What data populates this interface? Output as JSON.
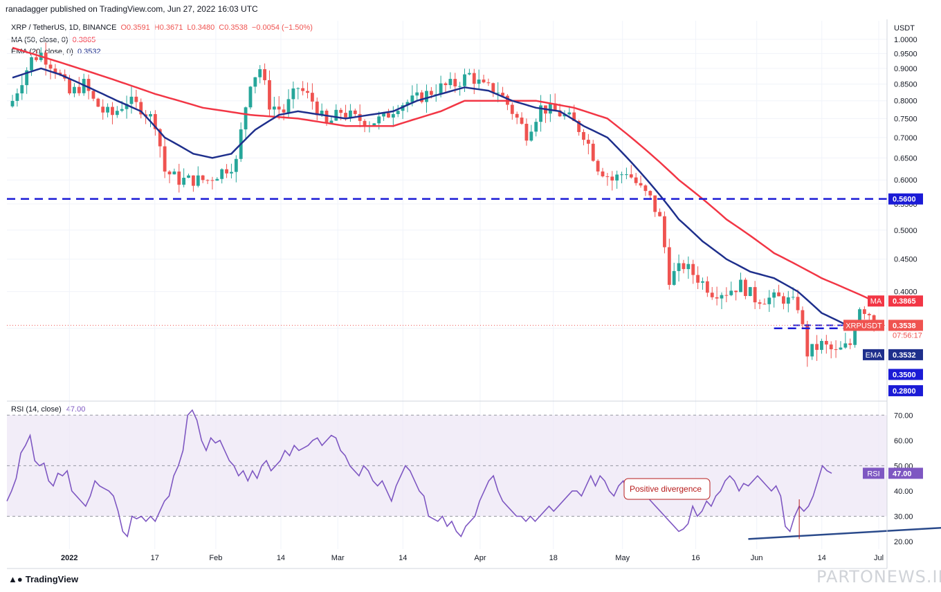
{
  "publisher": "ranadagger published on TradingView.com, Jun 27, 2022 16:03 UTC",
  "legend": {
    "symbol": "XRP / TetherUS, 1D, BINANCE",
    "open": "O0.3591",
    "high": "H0.3671",
    "low": "L0.3480",
    "close": "C0.3538",
    "change": "−0.0054 (−1.50%)",
    "ma_label": "MA (50, close, 0)",
    "ma_value": "0.3865",
    "ema_label": "EMA (20, close, 0)",
    "ema_value": "0.3532"
  },
  "rsi_legend": {
    "label": "RSI (14, close)",
    "value": "47.00"
  },
  "footer": "TradingView",
  "watermark": "PARTONEWS.IR",
  "annotation_text": "Positive divergence",
  "colors": {
    "up": "#26a69a",
    "down": "#ef5350",
    "ma": "#f23645",
    "ema": "#1e2f8c",
    "rsi": "#7e57c2",
    "level": "#1b1bd6",
    "trend": "#2a4a8b"
  },
  "chart_data": [
    {
      "type": "candlestick",
      "title": "XRP / TetherUS, 1D, BINANCE",
      "ylabel": "USDT",
      "yscale": "log",
      "ylim": [
        0.27,
        1.07
      ],
      "y_ticks": [
        1.0,
        0.95,
        0.9,
        0.85,
        0.8,
        0.75,
        0.7,
        0.65,
        0.6,
        0.55,
        0.5,
        0.45,
        0.4,
        0.35
      ],
      "x_ticks": [
        "2022",
        "17",
        "Feb",
        "14",
        "Mar",
        "14",
        "Apr",
        "18",
        "May",
        "16",
        "Jun",
        "14",
        "Jul"
      ],
      "horizontal_levels": [
        0.56,
        0.28
      ],
      "level_tags": [
        "0.5600",
        "0.3500",
        "0.2800"
      ],
      "close_price": 0.3538,
      "countdown": "07:56:17",
      "ticker_tag": "XRPUSDT",
      "ma_tag": "MA",
      "ema_tag": "EMA",
      "ma_tag_value": "0.3865",
      "ema_tag_value": "0.3532",
      "close_tag_value": "0.3538",
      "series_names": [
        "MA",
        "EMA"
      ],
      "close_anchors": [
        [
          0,
          0.8
        ],
        [
          4,
          0.93
        ],
        [
          6,
          0.95
        ],
        [
          9,
          0.9
        ],
        [
          12,
          0.82
        ],
        [
          15,
          0.85
        ],
        [
          17,
          0.8
        ],
        [
          19,
          0.77
        ],
        [
          21,
          0.76
        ],
        [
          24,
          0.8
        ],
        [
          27,
          0.78
        ],
        [
          30,
          0.74
        ],
        [
          32,
          0.62
        ],
        [
          35,
          0.6
        ],
        [
          38,
          0.6
        ],
        [
          41,
          0.6
        ],
        [
          44,
          0.62
        ],
        [
          47,
          0.64
        ],
        [
          50,
          0.86
        ],
        [
          52,
          0.9
        ],
        [
          54,
          0.79
        ],
        [
          57,
          0.77
        ],
        [
          60,
          0.84
        ],
        [
          63,
          0.8
        ],
        [
          66,
          0.73
        ],
        [
          69,
          0.77
        ],
        [
          72,
          0.75
        ],
        [
          75,
          0.74
        ],
        [
          78,
          0.75
        ],
        [
          81,
          0.79
        ],
        [
          84,
          0.8
        ],
        [
          87,
          0.82
        ],
        [
          90,
          0.84
        ],
        [
          93,
          0.85
        ],
        [
          96,
          0.88
        ],
        [
          99,
          0.84
        ],
        [
          102,
          0.83
        ],
        [
          105,
          0.77
        ],
        [
          108,
          0.71
        ],
        [
          111,
          0.78
        ],
        [
          114,
          0.77
        ],
        [
          117,
          0.75
        ],
        [
          120,
          0.71
        ],
        [
          123,
          0.63
        ],
        [
          126,
          0.6
        ],
        [
          129,
          0.62
        ],
        [
          132,
          0.58
        ],
        [
          134,
          0.56
        ],
        [
          136,
          0.52
        ],
        [
          138,
          0.42
        ],
        [
          141,
          0.44
        ],
        [
          144,
          0.42
        ],
        [
          147,
          0.4
        ],
        [
          150,
          0.4
        ],
        [
          153,
          0.41
        ],
        [
          156,
          0.39
        ],
        [
          159,
          0.39
        ],
        [
          162,
          0.39
        ],
        [
          165,
          0.38
        ],
        [
          167,
          0.32
        ],
        [
          170,
          0.33
        ],
        [
          173,
          0.32
        ],
        [
          176,
          0.33
        ],
        [
          178,
          0.38
        ],
        [
          180,
          0.37
        ],
        [
          181,
          0.3538
        ]
      ],
      "ma_anchors": [
        [
          0,
          0.97
        ],
        [
          10,
          0.92
        ],
        [
          20,
          0.87
        ],
        [
          30,
          0.82
        ],
        [
          40,
          0.78
        ],
        [
          50,
          0.76
        ],
        [
          60,
          0.75
        ],
        [
          70,
          0.73
        ],
        [
          80,
          0.73
        ],
        [
          90,
          0.77
        ],
        [
          95,
          0.8
        ],
        [
          102,
          0.8
        ],
        [
          110,
          0.8
        ],
        [
          118,
          0.78
        ],
        [
          125,
          0.75
        ],
        [
          130,
          0.7
        ],
        [
          135,
          0.65
        ],
        [
          140,
          0.6
        ],
        [
          150,
          0.52
        ],
        [
          160,
          0.46
        ],
        [
          170,
          0.42
        ],
        [
          181,
          0.3865
        ]
      ],
      "ema_anchors": [
        [
          0,
          0.87
        ],
        [
          6,
          0.9
        ],
        [
          10,
          0.88
        ],
        [
          16,
          0.84
        ],
        [
          22,
          0.8
        ],
        [
          27,
          0.77
        ],
        [
          32,
          0.7
        ],
        [
          38,
          0.66
        ],
        [
          42,
          0.65
        ],
        [
          46,
          0.66
        ],
        [
          51,
          0.72
        ],
        [
          56,
          0.76
        ],
        [
          60,
          0.77
        ],
        [
          65,
          0.76
        ],
        [
          70,
          0.75
        ],
        [
          75,
          0.76
        ],
        [
          80,
          0.77
        ],
        [
          85,
          0.8
        ],
        [
          90,
          0.82
        ],
        [
          95,
          0.84
        ],
        [
          100,
          0.83
        ],
        [
          105,
          0.8
        ],
        [
          110,
          0.78
        ],
        [
          115,
          0.77
        ],
        [
          120,
          0.73
        ],
        [
          125,
          0.7
        ],
        [
          130,
          0.64
        ],
        [
          135,
          0.58
        ],
        [
          140,
          0.52
        ],
        [
          145,
          0.48
        ],
        [
          150,
          0.45
        ],
        [
          155,
          0.43
        ],
        [
          160,
          0.42
        ],
        [
          165,
          0.4
        ],
        [
          170,
          0.37
        ],
        [
          175,
          0.355
        ],
        [
          181,
          0.3532
        ]
      ]
    },
    {
      "type": "line",
      "title": "RSI (14, close)",
      "ylim": [
        17,
        75
      ],
      "y_ticks": [
        70.0,
        60.0,
        50.0,
        40.0,
        30.0,
        20.0
      ],
      "overbought": 70,
      "oversold": 30,
      "midline": 50,
      "rsi_tag": "RSI",
      "rsi_tag_value": "47.00",
      "series": [
        {
          "values": [
            36,
            40,
            45,
            55,
            58,
            62,
            52,
            50,
            51,
            44,
            42,
            47,
            46,
            48,
            40,
            38,
            36,
            34,
            38,
            44,
            42,
            41,
            40,
            38,
            32,
            24,
            22,
            30,
            29,
            30,
            28,
            30,
            28,
            32,
            36,
            38,
            46,
            50,
            56,
            70,
            72,
            68,
            60,
            56,
            61,
            59,
            60,
            56,
            52,
            50,
            46,
            48,
            44,
            48,
            45,
            50,
            52,
            48,
            50,
            52,
            56,
            54,
            58,
            56,
            57,
            58,
            60,
            61,
            58,
            60,
            62,
            61,
            56,
            54,
            50,
            48,
            46,
            50,
            48,
            44,
            42,
            44,
            40,
            36,
            42,
            46,
            50,
            48,
            44,
            40,
            38,
            30,
            29,
            28,
            30,
            26,
            28,
            24,
            22,
            26,
            28,
            30,
            36,
            40,
            44,
            46,
            40,
            36,
            34,
            32,
            30,
            30,
            28,
            30,
            28,
            30,
            32,
            34,
            32,
            34,
            36,
            38,
            40,
            40,
            38,
            42,
            46,
            42,
            46,
            44,
            40,
            38,
            42,
            44,
            40,
            38,
            40,
            42,
            38,
            36,
            34,
            32,
            30,
            28,
            26,
            24,
            25,
            27,
            34,
            30,
            32,
            36,
            34,
            38,
            40,
            44,
            46,
            44,
            40,
            43,
            42,
            44,
            46,
            44,
            42,
            40,
            42,
            38,
            26,
            24,
            30,
            34,
            32,
            34,
            38,
            44,
            50,
            48,
            47
          ]
        }
      ],
      "divergence_line": {
        "from": [
          160,
          21
        ],
        "to": [
          207,
          26
        ]
      }
    }
  ]
}
